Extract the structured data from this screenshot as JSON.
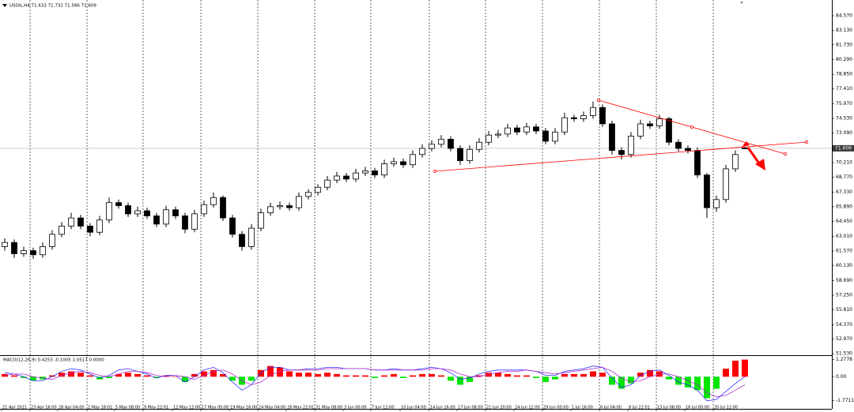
{
  "header": "USOIL,H4 71.633 71.732 71.586 71.609",
  "chart_data": [
    {
      "type": "candlestick",
      "open": [
        62.0,
        62.4,
        61.3,
        61.6,
        61.2,
        62.0,
        63.2,
        64.0,
        64.8,
        64.0,
        63.4,
        64.6,
        66.3,
        66.0,
        65.2,
        65.5,
        65.0,
        64.2,
        65.6,
        65.0,
        63.7,
        65.2,
        66.1,
        66.8,
        64.8,
        63.2,
        62.0,
        63.8,
        65.3,
        65.9,
        66.0,
        65.8,
        66.9,
        67.3,
        67.8,
        68.5,
        68.9,
        68.6,
        69.2,
        69.4,
        69.0,
        70.1,
        70.3,
        70.0,
        71.0,
        71.6,
        72.0,
        72.5,
        71.6,
        70.4,
        71.5,
        72.2,
        72.9,
        73.0,
        73.6,
        73.2,
        73.7,
        73.3,
        72.3,
        73.2,
        74.6,
        74.5,
        74.8,
        75.6,
        74.0,
        71.4,
        71.0,
        72.8,
        74.0,
        73.8,
        74.5,
        72.2,
        71.6,
        71.4,
        69.0,
        65.8,
        66.6,
        69.6,
        71.633
      ],
      "high": [
        62.8,
        62.7,
        62.0,
        61.9,
        62.4,
        63.6,
        64.4,
        65.3,
        65.1,
        64.3,
        65.0,
        66.8,
        66.6,
        66.3,
        65.9,
        65.8,
        65.3,
        66.0,
        65.9,
        65.3,
        65.6,
        66.5,
        67.3,
        67.0,
        65.1,
        63.5,
        64.2,
        65.7,
        66.3,
        66.4,
        66.3,
        67.3,
        67.6,
        68.1,
        68.9,
        69.3,
        69.2,
        69.6,
        69.8,
        69.7,
        70.5,
        70.7,
        70.6,
        71.4,
        72.0,
        72.4,
        72.9,
        72.8,
        71.9,
        71.9,
        72.6,
        73.3,
        73.4,
        74.0,
        73.9,
        74.1,
        74.0,
        73.6,
        73.6,
        75.1,
        74.9,
        75.2,
        76.2,
        75.9,
        74.3,
        71.7,
        73.2,
        74.4,
        74.3,
        74.9,
        74.7,
        72.5,
        71.9,
        71.7,
        69.2,
        67.0,
        70.0,
        71.4,
        71.732
      ],
      "low": [
        61.6,
        60.9,
        61.0,
        60.8,
        60.9,
        61.7,
        62.9,
        63.7,
        63.7,
        63.0,
        63.1,
        64.3,
        65.7,
        64.9,
        64.9,
        64.7,
        63.9,
        63.9,
        64.7,
        63.3,
        63.4,
        64.9,
        65.8,
        64.5,
        62.9,
        61.6,
        61.7,
        63.5,
        65.0,
        65.6,
        65.5,
        65.5,
        66.6,
        67.0,
        67.5,
        68.2,
        68.3,
        68.3,
        68.9,
        68.7,
        68.7,
        69.8,
        69.7,
        69.7,
        70.7,
        71.3,
        71.7,
        71.3,
        70.0,
        70.1,
        71.2,
        71.9,
        72.6,
        72.7,
        72.9,
        72.9,
        73.0,
        72.0,
        72.0,
        72.9,
        74.2,
        74.2,
        74.5,
        73.7,
        71.0,
        70.5,
        70.7,
        72.5,
        73.5,
        73.5,
        71.9,
        71.3,
        71.1,
        68.7,
        64.8,
        65.4,
        66.3,
        69.3,
        71.586
      ],
      "close": [
        62.4,
        61.3,
        61.6,
        61.2,
        62.0,
        63.2,
        64.0,
        64.8,
        64.0,
        63.4,
        64.6,
        66.3,
        66.0,
        65.2,
        65.5,
        65.0,
        64.2,
        65.6,
        65.0,
        63.7,
        65.2,
        66.1,
        66.8,
        64.8,
        63.2,
        62.0,
        63.8,
        65.3,
        65.9,
        66.0,
        65.8,
        66.9,
        67.3,
        67.8,
        68.5,
        68.9,
        68.6,
        69.2,
        69.4,
        69.0,
        70.1,
        70.3,
        70.0,
        71.0,
        71.6,
        72.0,
        72.5,
        71.6,
        70.4,
        71.5,
        72.2,
        72.9,
        73.0,
        73.6,
        73.2,
        73.7,
        73.3,
        72.3,
        73.2,
        74.6,
        74.5,
        74.8,
        75.6,
        74.0,
        71.4,
        71.0,
        72.8,
        74.0,
        73.8,
        74.5,
        72.2,
        71.6,
        71.4,
        69.0,
        65.8,
        66.6,
        69.6,
        71.0,
        71.609
      ],
      "up_color": "#ffffff",
      "down_color": "#000000",
      "outline_color": "#000000",
      "xlim": [
        0,
        87.67
      ],
      "xticks": [
        {
          "value": 0.17,
          "label": "21 Apr 2021"
        },
        {
          "value": 3.17,
          "label": "23 Apr 16:00"
        },
        {
          "value": 6.08,
          "label": "28 Apr 04:00"
        },
        {
          "value": 9.17,
          "label": "2 May 18:01"
        },
        {
          "value": 12.08,
          "label": "5 May 08:00"
        },
        {
          "value": 15.08,
          "label": "9 May 22:01"
        },
        {
          "value": 18.17,
          "label": "12 May 12:00"
        },
        {
          "value": 21.17,
          "label": "17 May 00:00"
        },
        {
          "value": 24.17,
          "label": "19 May 16:00"
        },
        {
          "value": 27.17,
          "label": "24 May 04:00"
        },
        {
          "value": 30.17,
          "label": "26 May 22:01"
        },
        {
          "value": 33.17,
          "label": "31 May 08:00"
        },
        {
          "value": 36.17,
          "label": "3 Jun 00:00"
        },
        {
          "value": 39.08,
          "label": "7 Jun 12:00"
        },
        {
          "value": 42.17,
          "label": "10 Jun 04:00"
        },
        {
          "value": 45.25,
          "label": "14 Jun 16:00"
        },
        {
          "value": 48.17,
          "label": "17 Jun 08:00"
        },
        {
          "value": 51.17,
          "label": "21 Jun 20:00"
        },
        {
          "value": 54.17,
          "label": "24 Jun 12:00"
        },
        {
          "value": 57.17,
          "label": "29 Jun 00:00"
        },
        {
          "value": 60.17,
          "label": "1 Jul 16:00"
        },
        {
          "value": 63.17,
          "label": "6 Jul 04:00"
        },
        {
          "value": 66.17,
          "label": "8 Jul 22:01"
        },
        {
          "value": 69.17,
          "label": "13 Jul 08:00"
        },
        {
          "value": 72.17,
          "label": "16 Jul 00:00"
        },
        {
          "value": 75.17,
          "label": "20 Jul 12:00"
        }
      ],
      "ylim": [
        51.38,
        86.11
      ],
      "yticks": [
        {
          "value": 84.57,
          "label": "84.570"
        },
        {
          "value": 83.13,
          "label": "83.130"
        },
        {
          "value": 81.73,
          "label": "81.730"
        },
        {
          "value": 80.29,
          "label": "80.290"
        },
        {
          "value": 78.85,
          "label": "78.850"
        },
        {
          "value": 77.41,
          "label": "77.410"
        },
        {
          "value": 75.97,
          "label": "75.970"
        },
        {
          "value": 74.53,
          "label": "74.530"
        },
        {
          "value": 73.09,
          "label": "73.090"
        },
        {
          "value": 70.21,
          "label": "70.210"
        },
        {
          "value": 68.77,
          "label": "68.770"
        },
        {
          "value": 67.33,
          "label": "67.330"
        },
        {
          "value": 65.89,
          "label": "65.890"
        },
        {
          "value": 64.45,
          "label": "64.450"
        },
        {
          "value": 63.01,
          "label": "63.010"
        },
        {
          "value": 61.57,
          "label": "61.570"
        },
        {
          "value": 60.13,
          "label": "60.130"
        },
        {
          "value": 58.69,
          "label": "58.690"
        },
        {
          "value": 57.25,
          "label": "57.250"
        },
        {
          "value": 55.81,
          "label": "55.810"
        },
        {
          "value": 54.37,
          "label": "54.370"
        },
        {
          "value": 52.97,
          "label": "52.970"
        },
        {
          "value": 51.53,
          "label": "51.530"
        }
      ],
      "grid": true,
      "current_price_line": true
    },
    {
      "type": "macd",
      "title": "MACD(12,26,9) 0.4253 -0.1005 1.0517 0.0000",
      "histogram": {
        "up_color": "#ff0000",
        "down_color": "#00e600",
        "values": [
          0.2,
          0.1,
          -0.1,
          -0.3,
          -0.2,
          0.1,
          0.3,
          0.4,
          0.3,
          0.1,
          -0.2,
          -0.1,
          0.2,
          0.3,
          0.2,
          0.1,
          -0.1,
          0.1,
          0.0,
          -0.4,
          0.2,
          0.4,
          0.5,
          0.2,
          -0.3,
          -0.6,
          -0.3,
          0.5,
          0.8,
          0.7,
          0.4,
          0.3,
          0.3,
          0.2,
          0.3,
          0.2,
          0.1,
          0.1,
          0.1,
          -0.1,
          0.1,
          0.2,
          -0.1,
          0.1,
          0.2,
          0.2,
          0.1,
          -0.3,
          -0.6,
          -0.4,
          0.1,
          0.3,
          0.3,
          0.2,
          0.1,
          0.1,
          -0.1,
          -0.4,
          -0.2,
          0.2,
          0.2,
          0.2,
          0.4,
          0.3,
          -0.6,
          -0.9,
          -0.5,
          0.3,
          0.5,
          0.4,
          -0.2,
          -0.6,
          -0.8,
          -1.0,
          -1.6,
          -0.9,
          0.6,
          1.2,
          1.28
        ]
      },
      "series": [
        {
          "color": "#3333ff",
          "values": [
            0.3,
            0.2,
            0.0,
            -0.3,
            -0.3,
            0.0,
            0.4,
            0.6,
            0.5,
            0.2,
            -0.1,
            0.1,
            0.5,
            0.6,
            0.4,
            0.2,
            -0.1,
            0.1,
            0.1,
            -0.4,
            0.0,
            0.5,
            0.7,
            0.3,
            -0.4,
            -1.0,
            -0.6,
            0.3,
            0.7,
            0.7,
            0.5,
            0.5,
            0.6,
            0.6,
            0.7,
            0.7,
            0.6,
            0.6,
            0.6,
            0.5,
            0.5,
            0.6,
            0.5,
            0.5,
            0.6,
            0.7,
            0.6,
            0.3,
            -0.2,
            -0.1,
            0.2,
            0.4,
            0.5,
            0.5,
            0.5,
            0.5,
            0.4,
            0.1,
            0.1,
            0.4,
            0.5,
            0.6,
            0.8,
            0.7,
            -0.1,
            -0.8,
            -0.6,
            0.1,
            0.4,
            0.5,
            0.1,
            -0.4,
            -0.6,
            -1.0,
            -1.8,
            -1.7,
            -1.1,
            -0.5,
            0.0
          ]
        },
        {
          "color": "#b030d0",
          "values": [
            0.1,
            0.2,
            0.2,
            0.0,
            -0.1,
            -0.2,
            0.1,
            0.3,
            0.4,
            0.3,
            0.1,
            0.0,
            0.2,
            0.4,
            0.4,
            0.3,
            0.1,
            0.0,
            0.1,
            0.0,
            -0.2,
            0.1,
            0.4,
            0.5,
            0.2,
            -0.3,
            -0.6,
            -0.4,
            0.1,
            0.4,
            0.5,
            0.5,
            0.5,
            0.5,
            0.6,
            0.6,
            0.6,
            0.6,
            0.6,
            0.5,
            0.5,
            0.5,
            0.5,
            0.5,
            0.5,
            0.6,
            0.6,
            0.5,
            0.2,
            0.0,
            0.0,
            0.2,
            0.3,
            0.4,
            0.4,
            0.5,
            0.4,
            0.3,
            0.2,
            0.3,
            0.4,
            0.5,
            0.6,
            0.7,
            0.4,
            -0.1,
            -0.4,
            -0.3,
            0.0,
            0.2,
            0.2,
            0.0,
            -0.3,
            -0.6,
            -1.2,
            -1.5,
            -1.4,
            -1.0,
            -0.6
          ]
        }
      ],
      "ylim": [
        -2.4,
        1.55
      ],
      "yticks": [
        1.2778,
        {
          "value": 0,
          "label": "0.00"
        },
        -1.7711
      ]
    }
  ]
}
